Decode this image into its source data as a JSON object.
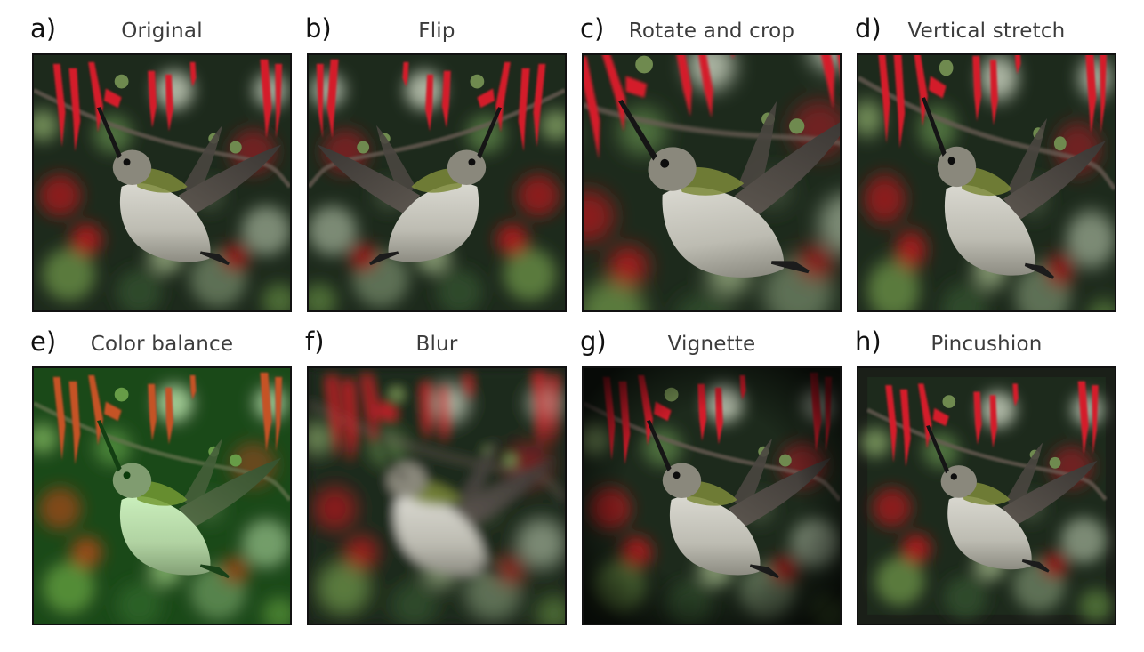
{
  "figure": {
    "panels": [
      {
        "letter": "a)",
        "title": "Original",
        "effect": "original"
      },
      {
        "letter": "b)",
        "title": "Flip",
        "effect": "flip"
      },
      {
        "letter": "c)",
        "title": "Rotate and crop",
        "effect": "rotate-crop"
      },
      {
        "letter": "d)",
        "title": "Vertical stretch",
        "effect": "vertical-stretch"
      },
      {
        "letter": "e)",
        "title": "Color balance",
        "effect": "color-balance"
      },
      {
        "letter": "f)",
        "title": "Blur",
        "effect": "blur"
      },
      {
        "letter": "g)",
        "title": "Vignette",
        "effect": "vignette"
      },
      {
        "letter": "h)",
        "title": "Pincushion",
        "effect": "pincushion"
      }
    ]
  }
}
